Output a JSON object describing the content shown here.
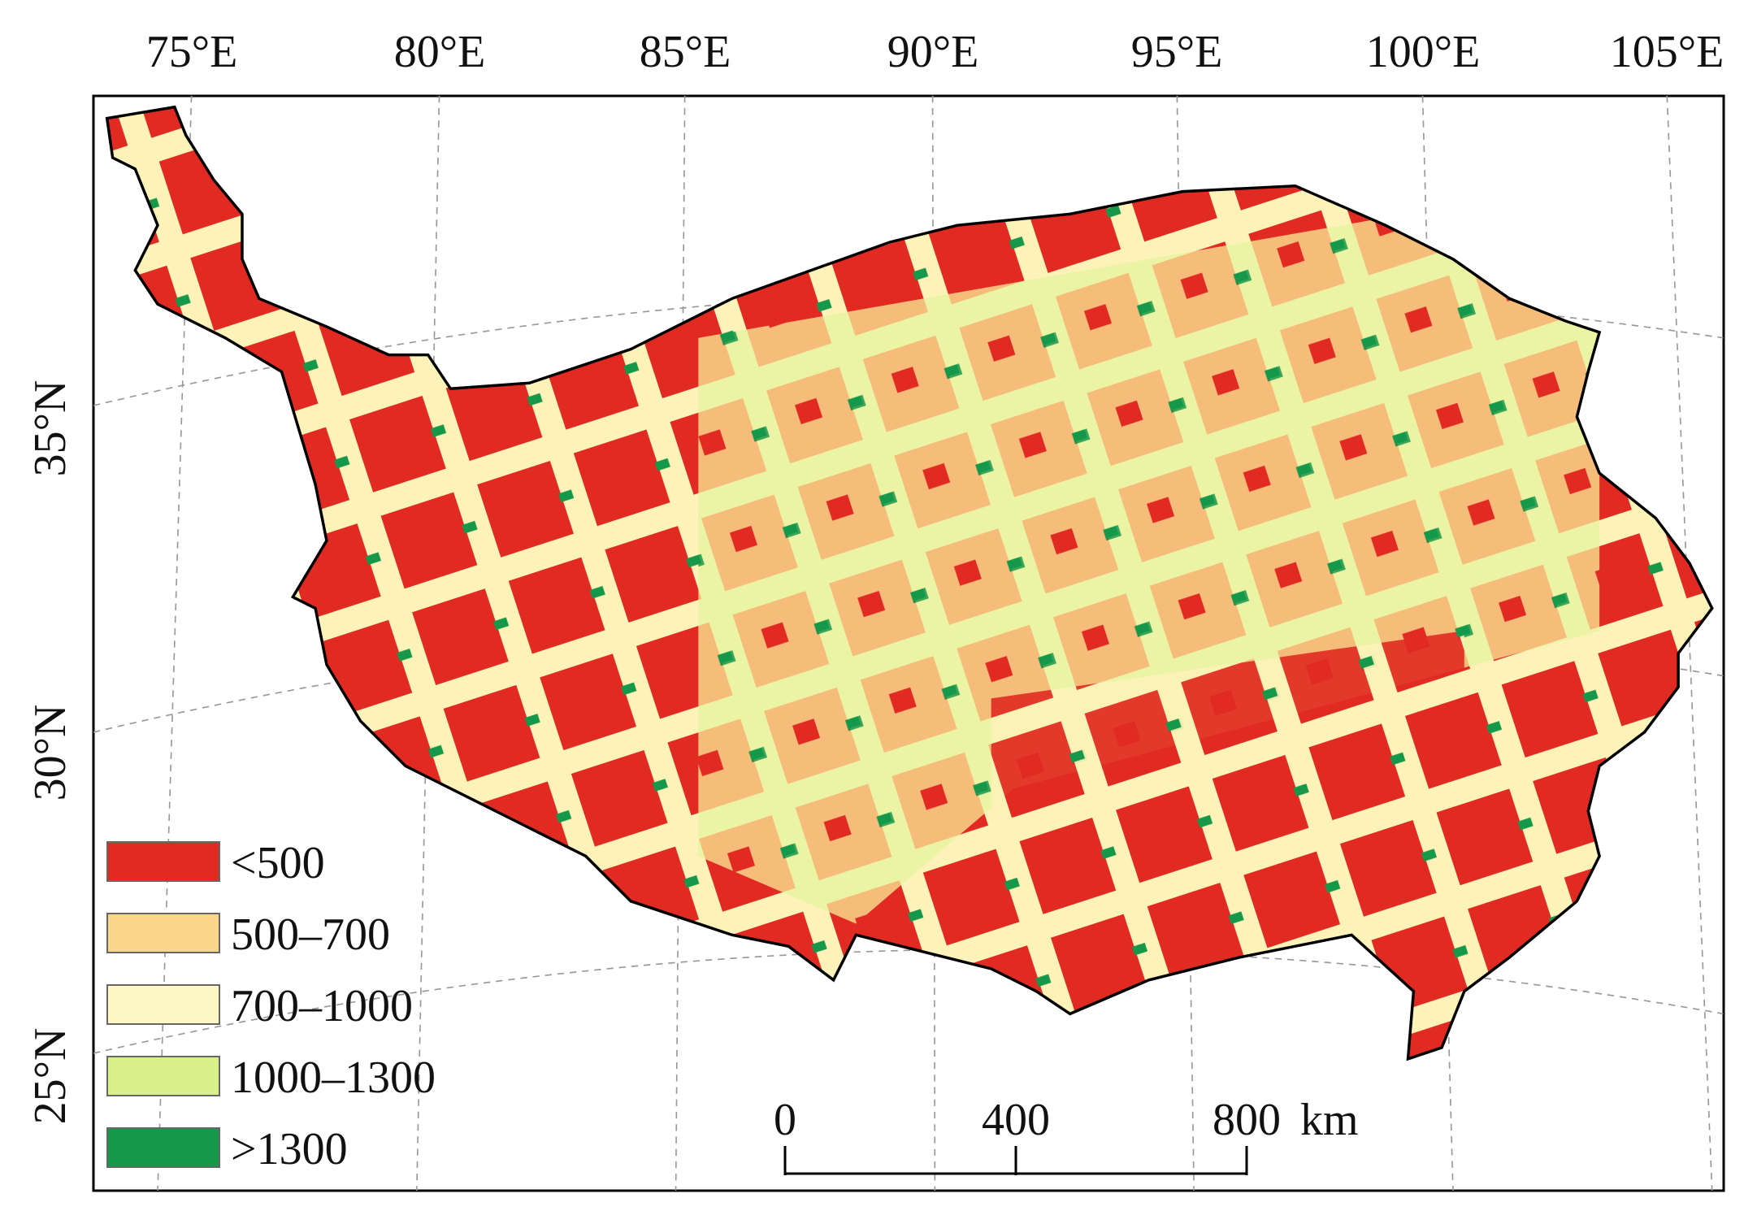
{
  "map": {
    "longitude_labels": [
      "75°E",
      "80°E",
      "85°E",
      "90°E",
      "95°E",
      "100°E",
      "105°E"
    ],
    "latitude_labels": [
      "35°N",
      "30°N",
      "25°N"
    ],
    "legend": [
      {
        "label": "<500",
        "color": "#e02a22"
      },
      {
        "label": "500–700",
        "color": "#f9d68a"
      },
      {
        "label": "700–1000",
        "color": "#fdf8c4"
      },
      {
        "label": "1000–1300",
        "color": "#d8ef8a"
      },
      {
        "label": ">1300",
        "color": "#16984a"
      }
    ],
    "scale_bar": {
      "labels": [
        "0",
        "400",
        "800"
      ],
      "unit": "km"
    }
  }
}
